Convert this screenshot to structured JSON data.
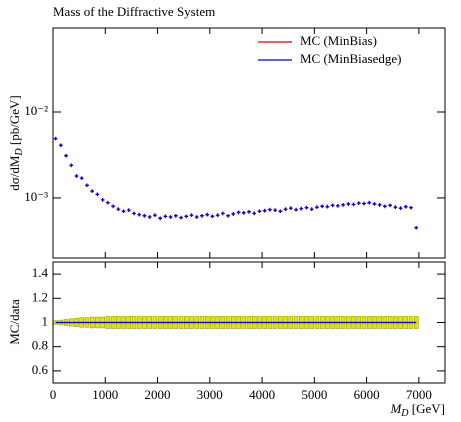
{
  "chart_data": [
    {
      "type": "points",
      "title": "Mass of the Diffractive System",
      "ylabel": {
        "main": "dσ/dM",
        "sub": "D",
        "unit": " [pb/GeV]"
      },
      "log_y": true,
      "legend": "upper right",
      "xlim": [
        0,
        7500
      ],
      "xticks": [
        0,
        1000,
        2000,
        3000,
        4000,
        5000,
        6000,
        7000
      ],
      "ylim": [
        0.0002,
        0.095
      ],
      "yticks": [
        {
          "value": 0.001,
          "label": "10⁻³"
        },
        {
          "value": 0.01,
          "label": "10⁻²"
        }
      ],
      "x": [
        50,
        150,
        250,
        350,
        450,
        550,
        650,
        750,
        850,
        950,
        1050,
        1150,
        1250,
        1350,
        1450,
        1550,
        1650,
        1750,
        1850,
        1950,
        2050,
        2150,
        2250,
        2350,
        2450,
        2550,
        2650,
        2750,
        2850,
        2950,
        3050,
        3150,
        3250,
        3350,
        3450,
        3550,
        3650,
        3750,
        3850,
        3950,
        4050,
        4150,
        4250,
        4350,
        4450,
        4550,
        4650,
        4750,
        4850,
        4950,
        5050,
        5150,
        5250,
        5350,
        5450,
        5550,
        5650,
        5750,
        5850,
        5950,
        6050,
        6150,
        6250,
        6350,
        6450,
        6550,
        6650,
        6750,
        6850,
        6950
      ],
      "series": [
        {
          "name": "MC (MinBias)",
          "color": "#dd0000",
          "values": [
            0.0049,
            0.0041,
            0.0031,
            0.0024,
            0.0018,
            0.0017,
            0.0014,
            0.0012,
            0.0011,
            0.00095,
            0.00088,
            0.0008,
            0.00074,
            0.0007,
            0.00072,
            0.00066,
            0.00064,
            0.00062,
            0.0006,
            0.00063,
            0.00058,
            0.00061,
            0.0006,
            0.00062,
            0.00059,
            0.00061,
            0.00063,
            0.0006,
            0.00062,
            0.00064,
            0.00061,
            0.00063,
            0.00066,
            0.00062,
            0.00065,
            0.00068,
            0.00067,
            0.00069,
            0.00066,
            0.0007,
            0.00071,
            0.00073,
            0.00072,
            0.0007,
            0.00074,
            0.00076,
            0.00073,
            0.00075,
            0.00077,
            0.00074,
            0.00078,
            0.0008,
            0.00079,
            0.00082,
            0.00081,
            0.00083,
            0.00085,
            0.00084,
            0.00087,
            0.00086,
            0.00088,
            0.00085,
            0.00083,
            0.0008,
            0.00082,
            0.00078,
            0.00076,
            0.00079,
            0.00077,
            0.00045
          ]
        },
        {
          "name": "MC (MinBiasedge)",
          "color": "#0000dd",
          "values": [
            0.0049,
            0.0041,
            0.0031,
            0.0024,
            0.0018,
            0.0017,
            0.0014,
            0.0012,
            0.0011,
            0.00095,
            0.00088,
            0.0008,
            0.00074,
            0.0007,
            0.00072,
            0.00066,
            0.00064,
            0.00062,
            0.0006,
            0.00063,
            0.00058,
            0.00061,
            0.0006,
            0.00062,
            0.00059,
            0.00061,
            0.00063,
            0.0006,
            0.00062,
            0.00064,
            0.00061,
            0.00063,
            0.00066,
            0.00062,
            0.00065,
            0.00068,
            0.00067,
            0.00069,
            0.00066,
            0.0007,
            0.00071,
            0.00073,
            0.00072,
            0.0007,
            0.00074,
            0.00076,
            0.00073,
            0.00075,
            0.00077,
            0.00074,
            0.00078,
            0.0008,
            0.00079,
            0.00082,
            0.00081,
            0.00083,
            0.00085,
            0.00084,
            0.00087,
            0.00086,
            0.00088,
            0.00085,
            0.00083,
            0.0008,
            0.00082,
            0.00078,
            0.00076,
            0.00079,
            0.00077,
            0.00045
          ]
        }
      ]
    },
    {
      "type": "ratio",
      "ylabel": "MC/data",
      "xlabel": {
        "main": "M",
        "sub": "D",
        "unit": " [GeV]"
      },
      "xlim": [
        0,
        7500
      ],
      "xticks": [
        0,
        1000,
        2000,
        3000,
        4000,
        5000,
        6000,
        7000
      ],
      "ylim": [
        0.5,
        1.5
      ],
      "yticks": [
        0.6,
        0.8,
        1,
        1.2,
        1.4
      ],
      "band_color": "#e8e000",
      "x": [
        50,
        150,
        250,
        350,
        450,
        550,
        650,
        750,
        850,
        950,
        1050,
        1150,
        1250,
        1350,
        1450,
        1550,
        1650,
        1750,
        1850,
        1950,
        2050,
        2150,
        2250,
        2350,
        2450,
        2550,
        2650,
        2750,
        2850,
        2950,
        3050,
        3150,
        3250,
        3350,
        3450,
        3550,
        3650,
        3750,
        3850,
        3950,
        4050,
        4150,
        4250,
        4350,
        4450,
        4550,
        4650,
        4750,
        4850,
        4950,
        5050,
        5150,
        5250,
        5350,
        5450,
        5550,
        5650,
        5750,
        5850,
        5950,
        6050,
        6150,
        6250,
        6350,
        6450,
        6550,
        6650,
        6750,
        6850,
        6950
      ],
      "series": [
        {
          "color": "#dd0000",
          "values": [
            1,
            1,
            1,
            1,
            1,
            1,
            1,
            1,
            1,
            1,
            1,
            1,
            1,
            1,
            1,
            1,
            1,
            1,
            1,
            1,
            1,
            1,
            1,
            1,
            1,
            1,
            1,
            1,
            1,
            1,
            1,
            1,
            1,
            1,
            1,
            1,
            1,
            1,
            1,
            1,
            1,
            1,
            1,
            1,
            1,
            1,
            1,
            1,
            1,
            1,
            1,
            1,
            1,
            1,
            1,
            1,
            1,
            1,
            1,
            1,
            1,
            1,
            1,
            1,
            1,
            1,
            1,
            1,
            1,
            1
          ],
          "errors": [
            0.015,
            0.02,
            0.025,
            0.03,
            0.035,
            0.04,
            0.04,
            0.045,
            0.045,
            0.045,
            0.05,
            0.05,
            0.05,
            0.05,
            0.05,
            0.05,
            0.05,
            0.05,
            0.05,
            0.05,
            0.05,
            0.05,
            0.05,
            0.05,
            0.05,
            0.05,
            0.05,
            0.05,
            0.05,
            0.05,
            0.05,
            0.05,
            0.05,
            0.05,
            0.05,
            0.05,
            0.05,
            0.05,
            0.05,
            0.05,
            0.05,
            0.05,
            0.05,
            0.05,
            0.05,
            0.05,
            0.05,
            0.05,
            0.05,
            0.05,
            0.05,
            0.05,
            0.05,
            0.05,
            0.05,
            0.05,
            0.05,
            0.05,
            0.05,
            0.05,
            0.05,
            0.05,
            0.05,
            0.05,
            0.05,
            0.05,
            0.05,
            0.05,
            0.05,
            0.05
          ]
        },
        {
          "color": "#0000dd",
          "values": [
            1,
            1,
            1,
            1,
            1,
            1,
            1,
            1,
            1,
            1,
            1,
            1,
            1,
            1,
            1,
            1,
            1,
            1,
            1,
            1,
            1,
            1,
            1,
            1,
            1,
            1,
            1,
            1,
            1,
            1,
            1,
            1,
            1,
            1,
            1,
            1,
            1,
            1,
            1,
            1,
            1,
            1,
            1,
            1,
            1,
            1,
            1,
            1,
            1,
            1,
            1,
            1,
            1,
            1,
            1,
            1,
            1,
            1,
            1,
            1,
            1,
            1,
            1,
            1,
            1,
            1,
            1,
            1,
            1,
            1
          ]
        }
      ]
    }
  ]
}
